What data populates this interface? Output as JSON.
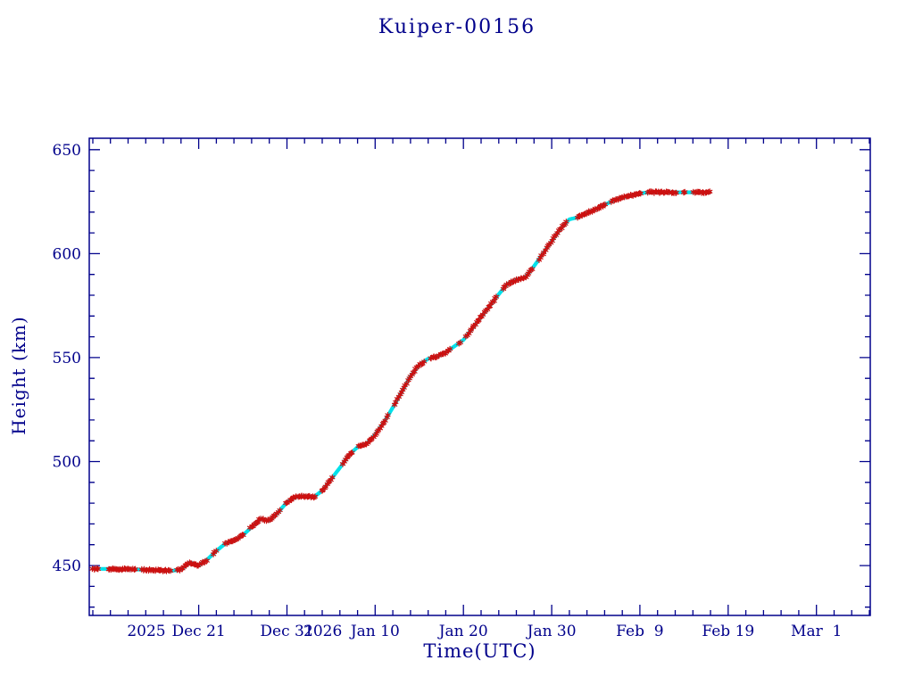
{
  "chart_data": {
    "type": "scatter",
    "title": "Kuiper-00156",
    "xlabel": "Time(UTC)",
    "ylabel": "Height (km)",
    "axis_color": "#00008b",
    "background_color": "#ffffff",
    "grid": false,
    "legend": false,
    "x_axis": {
      "epoch": "2025-12-01",
      "xlim_days": [
        8.6,
        97.1
      ],
      "minor_step_days": 2,
      "major_ticks": [
        {
          "date": "2025-12-21",
          "label": "Dec 21",
          "year": "2025"
        },
        {
          "date": "2025-12-31",
          "label": "Dec 31"
        },
        {
          "date": "2026-01-10",
          "label": "Jan 10",
          "year": "2026"
        },
        {
          "date": "2026-01-20",
          "label": "Jan 20"
        },
        {
          "date": "2026-01-30",
          "label": "Jan 30"
        },
        {
          "date": "2026-02-09",
          "label": "Feb  9"
        },
        {
          "date": "2026-02-19",
          "label": "Feb 19"
        },
        {
          "date": "2026-03-01",
          "label": "Mar  1"
        }
      ]
    },
    "y_axis": {
      "ylim": [
        426,
        655.5
      ],
      "major_ticks": [
        450,
        500,
        550,
        600,
        650
      ],
      "minor_step": 10,
      "minor_range": [
        430,
        650
      ]
    },
    "series": [
      {
        "name": "cyan-track",
        "color": "#00e1ea",
        "marker": "thick-line"
      },
      {
        "name": "red-track",
        "color": "#cc1010",
        "marker": "asterisk"
      }
    ],
    "points": [
      [
        "2025-12-09",
        448.5
      ],
      [
        "2025-12-10",
        448.4
      ],
      [
        "2025-12-11",
        448.4
      ],
      [
        "2025-12-12",
        448.3
      ],
      [
        "2025-12-13",
        448.2
      ],
      [
        "2025-12-14",
        448.1
      ],
      [
        "2025-12-15",
        448.0
      ],
      [
        "2025-12-16",
        447.8
      ],
      [
        "2025-12-17",
        447.6
      ],
      [
        "2025-12-18",
        447.5
      ],
      [
        "2025-12-19",
        448.0
      ],
      [
        "2025-12-20",
        451.5
      ],
      [
        "2025-12-21",
        450.0
      ],
      [
        "2025-12-22",
        453.0
      ],
      [
        "2025-12-23",
        457.0
      ],
      [
        "2025-12-24",
        460.5
      ],
      [
        "2025-12-25",
        462.0
      ],
      [
        "2025-12-26",
        464.5
      ],
      [
        "2025-12-27",
        468.5
      ],
      [
        "2025-12-28",
        472.5
      ],
      [
        "2025-12-29",
        471.5
      ],
      [
        "2025-12-30",
        475.5
      ],
      [
        "2025-12-31",
        480.5
      ],
      [
        "2026-01-01",
        483.0
      ],
      [
        "2026-01-02",
        483.4
      ],
      [
        "2026-01-03",
        482.8
      ],
      [
        "2026-01-04",
        486.0
      ],
      [
        "2026-01-05",
        491.5
      ],
      [
        "2026-01-06",
        497.0
      ],
      [
        "2026-01-07",
        503.0
      ],
      [
        "2026-01-08",
        507.0
      ],
      [
        "2026-01-09",
        508.5
      ],
      [
        "2026-01-10",
        513.0
      ],
      [
        "2026-01-11",
        519.0
      ],
      [
        "2026-01-12",
        526.0
      ],
      [
        "2026-01-13",
        533.5
      ],
      [
        "2026-01-14",
        541.0
      ],
      [
        "2026-01-15",
        546.5
      ],
      [
        "2026-01-16",
        549.5
      ],
      [
        "2026-01-17",
        550.5
      ],
      [
        "2026-01-18",
        552.5
      ],
      [
        "2026-01-19",
        555.5
      ],
      [
        "2026-01-20",
        558.5
      ],
      [
        "2026-01-21",
        564.0
      ],
      [
        "2026-01-22",
        569.5
      ],
      [
        "2026-01-23",
        575.0
      ],
      [
        "2026-01-24",
        580.5
      ],
      [
        "2026-01-25",
        585.5
      ],
      [
        "2026-01-26",
        587.5
      ],
      [
        "2026-01-27",
        588.5
      ],
      [
        "2026-01-28",
        594.0
      ],
      [
        "2026-01-29",
        600.0
      ],
      [
        "2026-01-30",
        606.0
      ],
      [
        "2026-01-31",
        612.0
      ],
      [
        "2026-02-01",
        616.5
      ],
      [
        "2026-02-02",
        617.5
      ],
      [
        "2026-02-03",
        619.5
      ],
      [
        "2026-02-04",
        621.5
      ],
      [
        "2026-02-05",
        623.5
      ],
      [
        "2026-02-06",
        625.5
      ],
      [
        "2026-02-07",
        627.0
      ],
      [
        "2026-02-08",
        628.0
      ],
      [
        "2026-02-09",
        629.0
      ],
      [
        "2026-02-10",
        629.5
      ],
      [
        "2026-02-11",
        629.5
      ],
      [
        "2026-02-12",
        629.5
      ],
      [
        "2026-02-13",
        629.5
      ],
      [
        "2026-02-14",
        629.5
      ],
      [
        "2026-02-15",
        629.5
      ],
      [
        "2026-02-16",
        629.5
      ],
      [
        "2026-02-17",
        629.5
      ]
    ]
  }
}
